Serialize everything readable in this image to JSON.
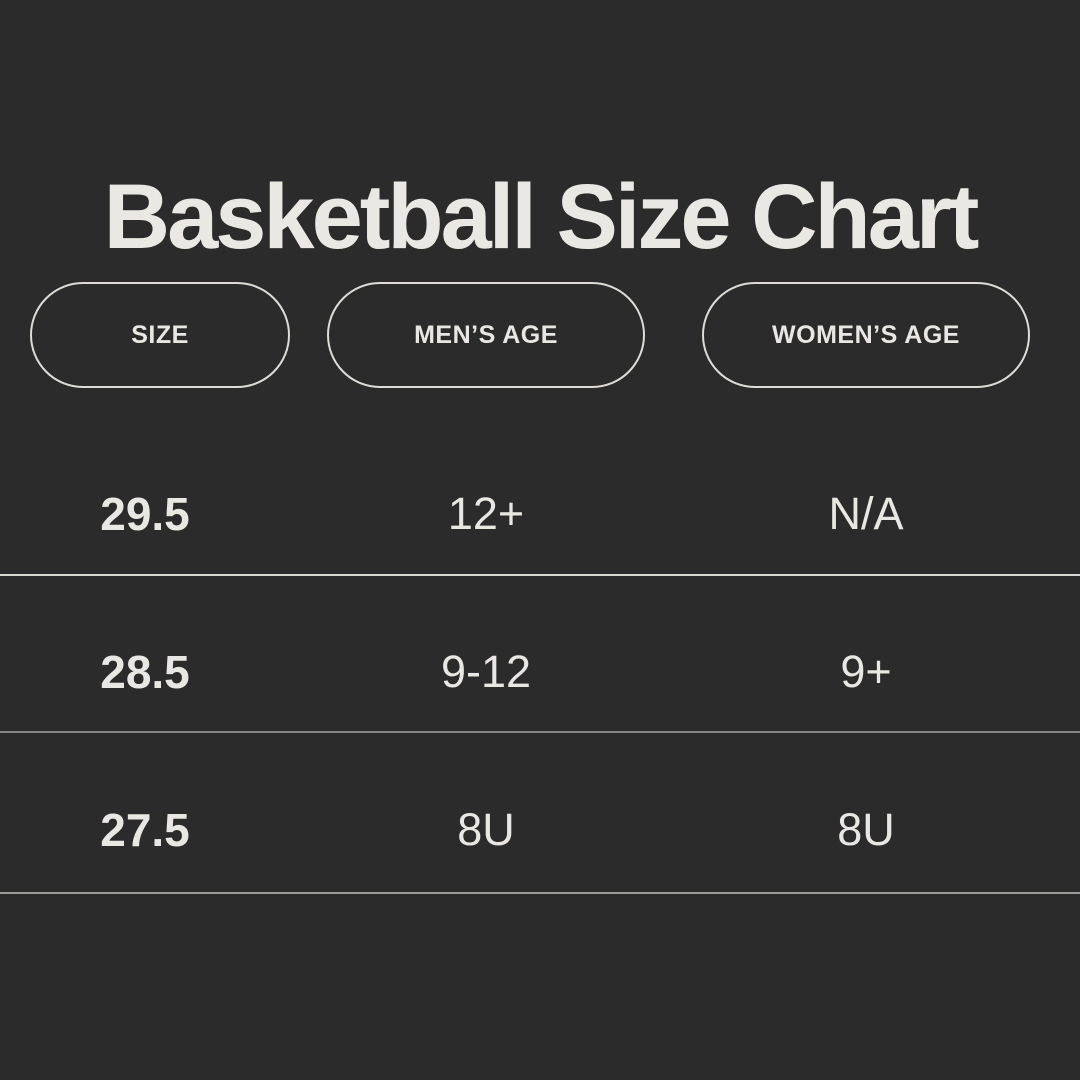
{
  "chart_data": {
    "type": "table",
    "title": "Basketball Size Chart",
    "columns": [
      "SIZE",
      "MEN’S AGE",
      "WOMEN’S AGE"
    ],
    "rows": [
      [
        "29.5",
        "12+",
        "N/A"
      ],
      [
        "28.5",
        "9-12",
        "9+"
      ],
      [
        "27.5",
        "8U",
        "8U"
      ]
    ]
  },
  "style": {
    "background": "#2b2b2b",
    "text_color": "#e9e7e1",
    "title_color": "#eae8e2",
    "pill_border_color": "#dedcd6",
    "divider_colors": [
      "#d8d6d1",
      "#878787",
      "#9e9c97"
    ]
  }
}
